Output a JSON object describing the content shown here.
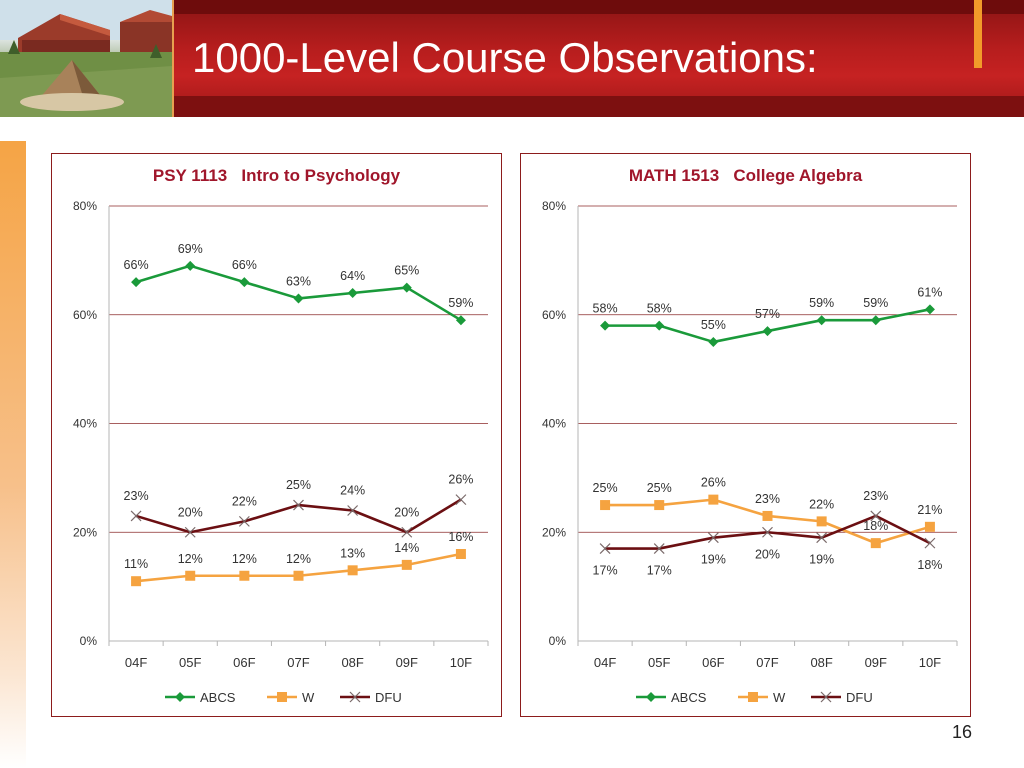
{
  "slide": {
    "title": "1000-Level Course Observations:",
    "page_number": "16"
  },
  "colors": {
    "header_red": "#b51d1d",
    "accent_orange": "#f29b2a",
    "abcs": "#1a9a3a",
    "w": "#f5a340",
    "dfu": "#6b0f12",
    "chart_title": "#a0162b"
  },
  "chart_data": [
    {
      "type": "line",
      "title": "PSY 1113   Intro to Psychology",
      "categories": [
        "04F",
        "05F",
        "06F",
        "07F",
        "08F",
        "09F",
        "10F"
      ],
      "ylim": [
        0,
        80
      ],
      "yticks": [
        "0%",
        "20%",
        "40%",
        "60%",
        "80%"
      ],
      "grid": true,
      "legend_position": "bottom",
      "series": [
        {
          "name": "ABCS",
          "marker": "diamond",
          "values": [
            66,
            69,
            66,
            63,
            64,
            65,
            59
          ],
          "labels": [
            "66%",
            "69%",
            "66%",
            "63%",
            "64%",
            "65%",
            "59%"
          ]
        },
        {
          "name": "W",
          "marker": "square",
          "values": [
            11,
            12,
            12,
            12,
            13,
            14,
            16
          ],
          "labels": [
            "11%",
            "12%",
            "12%",
            "12%",
            "13%",
            "14%",
            "16%"
          ]
        },
        {
          "name": "DFU",
          "marker": "x",
          "values": [
            23,
            20,
            22,
            25,
            24,
            20,
            26
          ],
          "labels": [
            "23%",
            "20%",
            "22%",
            "25%",
            "24%",
            "20%",
            "26%"
          ]
        }
      ]
    },
    {
      "type": "line",
      "title": "MATH 1513   College Algebra",
      "categories": [
        "04F",
        "05F",
        "06F",
        "07F",
        "08F",
        "09F",
        "10F"
      ],
      "ylim": [
        0,
        80
      ],
      "yticks": [
        "0%",
        "20%",
        "40%",
        "60%",
        "80%"
      ],
      "grid": true,
      "legend_position": "bottom",
      "series": [
        {
          "name": "ABCS",
          "marker": "diamond",
          "values": [
            58,
            58,
            55,
            57,
            59,
            59,
            61
          ],
          "labels": [
            "58%",
            "58%",
            "55%",
            "57%",
            "59%",
            "59%",
            "61%"
          ]
        },
        {
          "name": "W",
          "marker": "square",
          "values": [
            25,
            25,
            26,
            23,
            22,
            18,
            21
          ],
          "labels": [
            "25%",
            "25%",
            "26%",
            "23%",
            "22%",
            "18%",
            "21%"
          ]
        },
        {
          "name": "DFU",
          "marker": "x",
          "values": [
            17,
            17,
            19,
            20,
            19,
            23,
            18
          ],
          "labels": [
            "17%",
            "17%",
            "19%",
            "20%",
            "19%",
            "23%",
            "18%"
          ]
        }
      ]
    }
  ]
}
